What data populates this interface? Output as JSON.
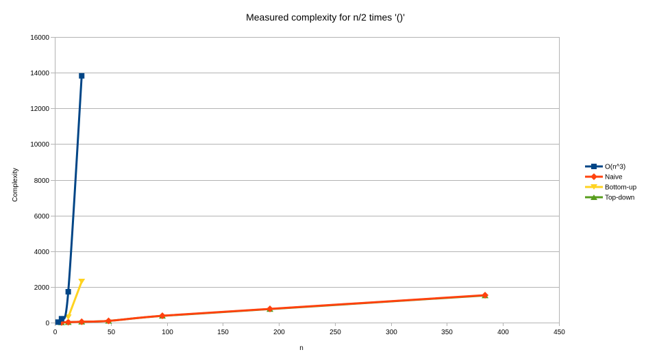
{
  "chart_data": {
    "type": "line",
    "title": "Measured complexity for n/2 times '()'",
    "xlabel": "n",
    "ylabel": "Complexity",
    "xlim": [
      0,
      450
    ],
    "ylim": [
      0,
      16000
    ],
    "xticks": [
      0,
      50,
      100,
      150,
      200,
      250,
      300,
      350,
      400,
      450
    ],
    "yticks": [
      0,
      2000,
      4000,
      6000,
      8000,
      10000,
      12000,
      14000,
      16000
    ],
    "grid": "horizontal",
    "legend_position": "right",
    "series": [
      {
        "name": "O(n^3)",
        "color": "#004586",
        "marker": "square",
        "x": [
          3,
          6,
          12,
          24
        ],
        "y": [
          27,
          216,
          1728,
          13824
        ]
      },
      {
        "name": "Naive",
        "color": "#ff420e",
        "marker": "diamond",
        "x": [
          6,
          12,
          24,
          48,
          96,
          192,
          384
        ],
        "y": [
          11,
          23,
          47,
          95,
          383,
          767,
          1535
        ]
      },
      {
        "name": "Bottom-up",
        "color": "#ffd320",
        "marker": "triangle-down",
        "x": [
          12,
          24
        ],
        "y": [
          300,
          2300
        ]
      },
      {
        "name": "Top-down",
        "color": "#579d1c",
        "marker": "triangle-up",
        "x": [
          6,
          12,
          24,
          48,
          96,
          192,
          384
        ],
        "y": [
          10,
          22,
          46,
          94,
          378,
          760,
          1520
        ]
      }
    ]
  }
}
